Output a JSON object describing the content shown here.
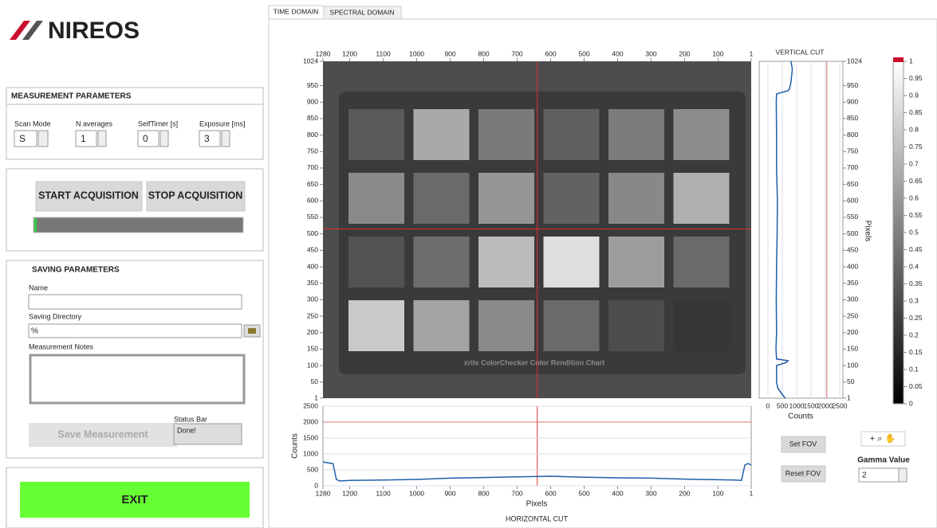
{
  "logo": "NIREOS",
  "measurement": {
    "title": "MEASUREMENT PARAMETERS",
    "fields": [
      {
        "label": "Scan Mode",
        "value": "S"
      },
      {
        "label": "N averages",
        "value": "1"
      },
      {
        "label": "SelfTimer [s]",
        "value": "0"
      },
      {
        "label": "Exposure [ms]",
        "value": "3"
      }
    ]
  },
  "acquisition": {
    "start": "START ACQUISITION",
    "stop": "STOP ACQUISITION"
  },
  "saving": {
    "title": "SAVING PARAMETERS",
    "name_label": "Name",
    "dir_label": "Saving Directory",
    "dir_value": "%",
    "notes_label": "Measurement Notes",
    "save_button": "Save Measurement",
    "status_label": "Status Bar",
    "status_value": "Done!"
  },
  "exit": "EXIT",
  "tabs": [
    "TIME DOMAIN",
    "SPECTRAL DOMAIN"
  ],
  "image": {
    "watermark": "xrite ColorChecker Color Rendition Chart",
    "xlim": [
      1280,
      1
    ],
    "ylim": [
      1,
      1024
    ],
    "xticks": [
      1280,
      1200,
      1100,
      1000,
      900,
      800,
      700,
      600,
      500,
      400,
      300,
      200,
      100,
      1
    ],
    "yticks": [
      1,
      50,
      100,
      150,
      200,
      250,
      300,
      350,
      400,
      450,
      500,
      550,
      600,
      650,
      700,
      750,
      800,
      850,
      900,
      950,
      1024
    ],
    "cursor": {
      "x": 640,
      "y": 515
    }
  },
  "vertical_cut": {
    "title": "VERTICAL CUT",
    "xlabel": "Counts",
    "ylabel": "Pixels",
    "xlim": [
      0,
      2500
    ],
    "xticks": [
      0,
      500,
      1000,
      1500,
      2000,
      2500
    ],
    "reference": 2050,
    "pixels": [
      1,
      30,
      50,
      100,
      110,
      115,
      120,
      150,
      200,
      300,
      400,
      500,
      600,
      700,
      800,
      900,
      925,
      935,
      940,
      960,
      1000,
      1024
    ],
    "counts": [
      600,
      350,
      300,
      300,
      650,
      700,
      300,
      280,
      300,
      290,
      300,
      320,
      330,
      300,
      300,
      290,
      300,
      700,
      750,
      800,
      850,
      800
    ]
  },
  "horizontal_cut": {
    "title": "HORIZONTAL CUT",
    "xlabel": "Pixels",
    "ylabel": "Counts",
    "ylim": [
      0,
      2500
    ],
    "yticks": [
      0,
      500,
      1000,
      1500,
      2000,
      2500
    ],
    "reference": 2000,
    "pixels": [
      1280,
      1265,
      1250,
      1240,
      1230,
      1200,
      1100,
      1000,
      900,
      800,
      700,
      600,
      500,
      400,
      300,
      200,
      100,
      50,
      30,
      20,
      10,
      1
    ],
    "counts": [
      750,
      720,
      700,
      200,
      150,
      170,
      180,
      200,
      240,
      260,
      280,
      300,
      270,
      250,
      240,
      210,
      190,
      180,
      170,
      650,
      700,
      650
    ]
  },
  "colorbar": {
    "lim": [
      0,
      1
    ],
    "ticks": [
      0,
      0.05,
      0.1,
      0.15,
      0.2,
      0.25,
      0.3,
      0.35,
      0.4,
      0.45,
      0.5,
      0.55,
      0.6,
      0.65,
      0.7,
      0.75,
      0.8,
      0.85,
      0.9,
      0.95,
      1
    ]
  },
  "controls": {
    "set_fov": "Set FOV",
    "reset_fov": "Reset FOV",
    "gamma_label": "Gamma Value",
    "gamma_value": "2"
  }
}
